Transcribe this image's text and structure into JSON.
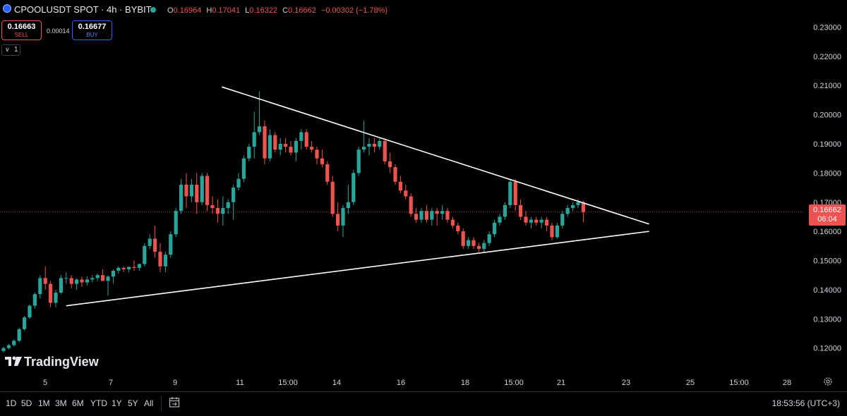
{
  "header": {
    "title": "CPOOLUSDT SPOT · 4h · BYBIT",
    "open_label": "O",
    "open": "0.16964",
    "high_label": "H",
    "high": "0.17041",
    "low_label": "L",
    "low": "0.16322",
    "close_label": "C",
    "close": "0.16662",
    "change": "−0.00302 (−1.78%)"
  },
  "trade": {
    "sell_price": "0.16663",
    "sell_label": "SELL",
    "buy_price": "0.16677",
    "buy_label": "BUY",
    "spread": "0.00014",
    "indicator_count": "1"
  },
  "price_label": {
    "price": "0.16662",
    "countdown": "06:04"
  },
  "branding": {
    "name": "TradingView"
  },
  "bottom": {
    "ranges": [
      "1D",
      "5D",
      "1M",
      "3M",
      "6M",
      "YTD",
      "1Y",
      "5Y",
      "All"
    ],
    "time": "18:53:56 (UTC+3)"
  },
  "icons": {
    "gear": "gear-icon",
    "calendar": "calendar-goto-icon",
    "collapse": "chevron-down-icon"
  },
  "colors": {
    "up": "#26a69a",
    "down": "#ef5350",
    "background": "#000000",
    "axis_text": "#d1d4dc",
    "pattern_line": "#ffffff"
  },
  "chart_data": {
    "type": "candlestick",
    "y_ticks": [
      "0.23000",
      "0.22000",
      "0.21000",
      "0.20000",
      "0.19000",
      "0.18000",
      "0.17000",
      "0.16000",
      "0.15000",
      "0.14000",
      "0.13000",
      "0.12000"
    ],
    "x_ticks": [
      "5",
      "7",
      "9",
      "11",
      "15:00",
      "14",
      "16",
      "18",
      "15:00",
      "21",
      "23",
      "25",
      "15:00",
      "28"
    ],
    "ylim": [
      0.1175,
      0.2335
    ],
    "last_price": 0.16662,
    "candles": [
      [
        0.119,
        0.1205,
        0.1185,
        0.12
      ],
      [
        0.12,
        0.1215,
        0.1195,
        0.121
      ],
      [
        0.121,
        0.123,
        0.1205,
        0.1225
      ],
      [
        0.1225,
        0.127,
        0.122,
        0.1265
      ],
      [
        0.1265,
        0.131,
        0.126,
        0.1305
      ],
      [
        0.1305,
        0.135,
        0.13,
        0.1345
      ],
      [
        0.1345,
        0.139,
        0.1335,
        0.1385
      ],
      [
        0.1385,
        0.145,
        0.137,
        0.144
      ],
      [
        0.144,
        0.148,
        0.14,
        0.142
      ],
      [
        0.142,
        0.143,
        0.134,
        0.1355
      ],
      [
        0.1355,
        0.14,
        0.134,
        0.139
      ],
      [
        0.139,
        0.145,
        0.1385,
        0.144
      ],
      [
        0.144,
        0.146,
        0.142,
        0.144
      ],
      [
        0.144,
        0.145,
        0.1405,
        0.142
      ],
      [
        0.142,
        0.144,
        0.14,
        0.1435
      ],
      [
        0.1435,
        0.1445,
        0.141,
        0.1425
      ],
      [
        0.1425,
        0.1445,
        0.1415,
        0.1435
      ],
      [
        0.1435,
        0.145,
        0.1425,
        0.144
      ],
      [
        0.144,
        0.1455,
        0.143,
        0.145
      ],
      [
        0.145,
        0.147,
        0.144,
        0.143
      ],
      [
        0.143,
        0.145,
        0.138,
        0.1445
      ],
      [
        0.1445,
        0.147,
        0.142,
        0.1465
      ],
      [
        0.1465,
        0.148,
        0.1455,
        0.1475
      ],
      [
        0.1475,
        0.148,
        0.146,
        0.147
      ],
      [
        0.147,
        0.148,
        0.146,
        0.1478
      ],
      [
        0.1478,
        0.15,
        0.1465,
        0.1475
      ],
      [
        0.1475,
        0.149,
        0.1465,
        0.1488
      ],
      [
        0.1488,
        0.156,
        0.148,
        0.155
      ],
      [
        0.155,
        0.159,
        0.154,
        0.1575
      ],
      [
        0.1575,
        0.162,
        0.151,
        0.153
      ],
      [
        0.153,
        0.156,
        0.146,
        0.148
      ],
      [
        0.148,
        0.153,
        0.146,
        0.152
      ],
      [
        0.152,
        0.16,
        0.151,
        0.159
      ],
      [
        0.159,
        0.168,
        0.158,
        0.167
      ],
      [
        0.167,
        0.178,
        0.166,
        0.176
      ],
      [
        0.176,
        0.18,
        0.168,
        0.172
      ],
      [
        0.172,
        0.178,
        0.17,
        0.176
      ],
      [
        0.176,
        0.18,
        0.166,
        0.17
      ],
      [
        0.17,
        0.18,
        0.169,
        0.179
      ],
      [
        0.179,
        0.18,
        0.167,
        0.169
      ],
      [
        0.169,
        0.172,
        0.166,
        0.168
      ],
      [
        0.168,
        0.171,
        0.163,
        0.166
      ],
      [
        0.166,
        0.172,
        0.162,
        0.168
      ],
      [
        0.168,
        0.171,
        0.166,
        0.17
      ],
      [
        0.17,
        0.176,
        0.164,
        0.175
      ],
      [
        0.175,
        0.18,
        0.174,
        0.178
      ],
      [
        0.178,
        0.186,
        0.177,
        0.185
      ],
      [
        0.185,
        0.19,
        0.184,
        0.189
      ],
      [
        0.189,
        0.201,
        0.185,
        0.194
      ],
      [
        0.194,
        0.208,
        0.193,
        0.196
      ],
      [
        0.196,
        0.198,
        0.183,
        0.185
      ],
      [
        0.185,
        0.195,
        0.184,
        0.193
      ],
      [
        0.193,
        0.194,
        0.187,
        0.188
      ],
      [
        0.188,
        0.192,
        0.186,
        0.19
      ],
      [
        0.19,
        0.192,
        0.187,
        0.189
      ],
      [
        0.189,
        0.191,
        0.186,
        0.187
      ],
      [
        0.187,
        0.192,
        0.184,
        0.191
      ],
      [
        0.191,
        0.195,
        0.188,
        0.194
      ],
      [
        0.194,
        0.195,
        0.188,
        0.189
      ],
      [
        0.189,
        0.191,
        0.187,
        0.188
      ],
      [
        0.188,
        0.189,
        0.183,
        0.185
      ],
      [
        0.185,
        0.188,
        0.182,
        0.183
      ],
      [
        0.183,
        0.184,
        0.176,
        0.177
      ],
      [
        0.177,
        0.179,
        0.165,
        0.166
      ],
      [
        0.166,
        0.17,
        0.16,
        0.162
      ],
      [
        0.162,
        0.169,
        0.158,
        0.168
      ],
      [
        0.168,
        0.176,
        0.166,
        0.17
      ],
      [
        0.17,
        0.181,
        0.169,
        0.18
      ],
      [
        0.18,
        0.189,
        0.179,
        0.188
      ],
      [
        0.188,
        0.198,
        0.187,
        0.189
      ],
      [
        0.189,
        0.192,
        0.186,
        0.19
      ],
      [
        0.19,
        0.192,
        0.187,
        0.189
      ],
      [
        0.189,
        0.192,
        0.188,
        0.191
      ],
      [
        0.191,
        0.192,
        0.183,
        0.184
      ],
      [
        0.184,
        0.187,
        0.18,
        0.182
      ],
      [
        0.182,
        0.183,
        0.176,
        0.177
      ],
      [
        0.177,
        0.179,
        0.173,
        0.174
      ],
      [
        0.174,
        0.176,
        0.171,
        0.172
      ],
      [
        0.172,
        0.173,
        0.165,
        0.166
      ],
      [
        0.166,
        0.168,
        0.163,
        0.164
      ],
      [
        0.164,
        0.168,
        0.163,
        0.167
      ],
      [
        0.167,
        0.169,
        0.163,
        0.164
      ],
      [
        0.164,
        0.168,
        0.162,
        0.167
      ],
      [
        0.167,
        0.168,
        0.162,
        0.166
      ],
      [
        0.166,
        0.169,
        0.164,
        0.167
      ],
      [
        0.167,
        0.168,
        0.163,
        0.164
      ],
      [
        0.164,
        0.165,
        0.161,
        0.162
      ],
      [
        0.162,
        0.163,
        0.159,
        0.16
      ],
      [
        0.16,
        0.161,
        0.154,
        0.155
      ],
      [
        0.155,
        0.158,
        0.154,
        0.157
      ],
      [
        0.157,
        0.158,
        0.154,
        0.155
      ],
      [
        0.155,
        0.156,
        0.153,
        0.154
      ],
      [
        0.154,
        0.157,
        0.153,
        0.156
      ],
      [
        0.156,
        0.16,
        0.155,
        0.159
      ],
      [
        0.159,
        0.164,
        0.158,
        0.163
      ],
      [
        0.163,
        0.166,
        0.162,
        0.165
      ],
      [
        0.165,
        0.17,
        0.164,
        0.169
      ],
      [
        0.169,
        0.178,
        0.168,
        0.177
      ],
      [
        0.177,
        0.178,
        0.167,
        0.169
      ],
      [
        0.169,
        0.171,
        0.164,
        0.165
      ],
      [
        0.165,
        0.167,
        0.162,
        0.163
      ],
      [
        0.163,
        0.165,
        0.161,
        0.164
      ],
      [
        0.164,
        0.165,
        0.162,
        0.163
      ],
      [
        0.163,
        0.165,
        0.161,
        0.164
      ],
      [
        0.164,
        0.165,
        0.16,
        0.162
      ],
      [
        0.162,
        0.163,
        0.157,
        0.158
      ],
      [
        0.158,
        0.163,
        0.1575,
        0.162
      ],
      [
        0.162,
        0.167,
        0.161,
        0.166
      ],
      [
        0.166,
        0.169,
        0.165,
        0.168
      ],
      [
        0.168,
        0.17,
        0.167,
        0.169
      ],
      [
        0.169,
        0.171,
        0.168,
        0.17
      ],
      [
        0.17,
        0.1705,
        0.1632,
        0.1666
      ]
    ],
    "trendlines": [
      {
        "name": "upper-resistance",
        "from": {
          "candle": 41.8,
          "price": 0.2095
        },
        "to": {
          "candle": 123.6,
          "price": 0.1625
        }
      },
      {
        "name": "lower-support",
        "from": {
          "candle": 12.0,
          "price": 0.1345
        },
        "to": {
          "candle": 123.6,
          "price": 0.16
        }
      }
    ]
  }
}
